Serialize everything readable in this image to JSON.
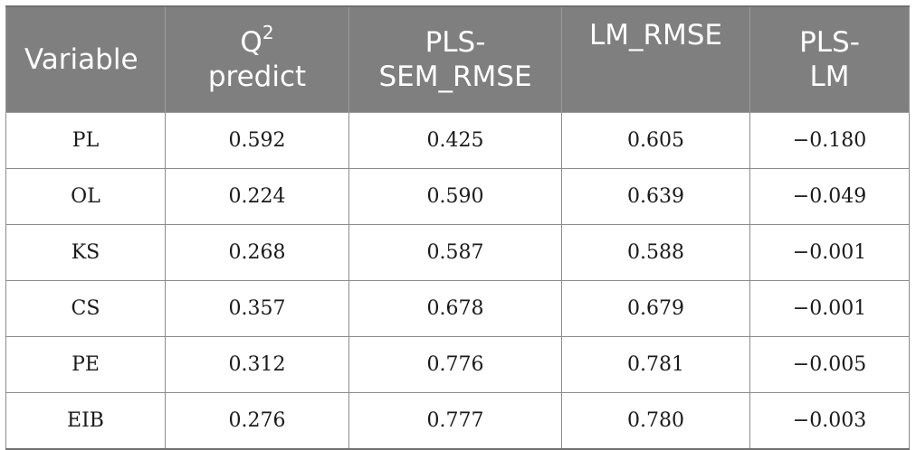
{
  "table": {
    "headers": {
      "variable": "Variable",
      "q2_main": "Q",
      "q2_sup": "2",
      "q2_sub": "predict",
      "pls_line1": "PLS-",
      "pls_line2": "SEM_RMSE",
      "lm_rmse": "LM_RMSE",
      "plslm_line1": "PLS-",
      "plslm_line2": "LM"
    },
    "rows": [
      {
        "variable": "PL",
        "q2": "0.592",
        "pls_sem_rmse": "0.425",
        "lm_rmse": "0.605",
        "pls_lm": "−0.180"
      },
      {
        "variable": "OL",
        "q2": "0.224",
        "pls_sem_rmse": "0.590",
        "lm_rmse": "0.639",
        "pls_lm": "−0.049"
      },
      {
        "variable": "KS",
        "q2": "0.268",
        "pls_sem_rmse": "0.587",
        "lm_rmse": "0.588",
        "pls_lm": "−0.001"
      },
      {
        "variable": "CS",
        "q2": "0.357",
        "pls_sem_rmse": "0.678",
        "lm_rmse": "0.679",
        "pls_lm": "−0.001"
      },
      {
        "variable": "PE",
        "q2": "0.312",
        "pls_sem_rmse": "0.776",
        "lm_rmse": "0.781",
        "pls_lm": "−0.005"
      },
      {
        "variable": "EIB",
        "q2": "0.276",
        "pls_sem_rmse": "0.777",
        "lm_rmse": "0.780",
        "pls_lm": "−0.003"
      }
    ]
  }
}
